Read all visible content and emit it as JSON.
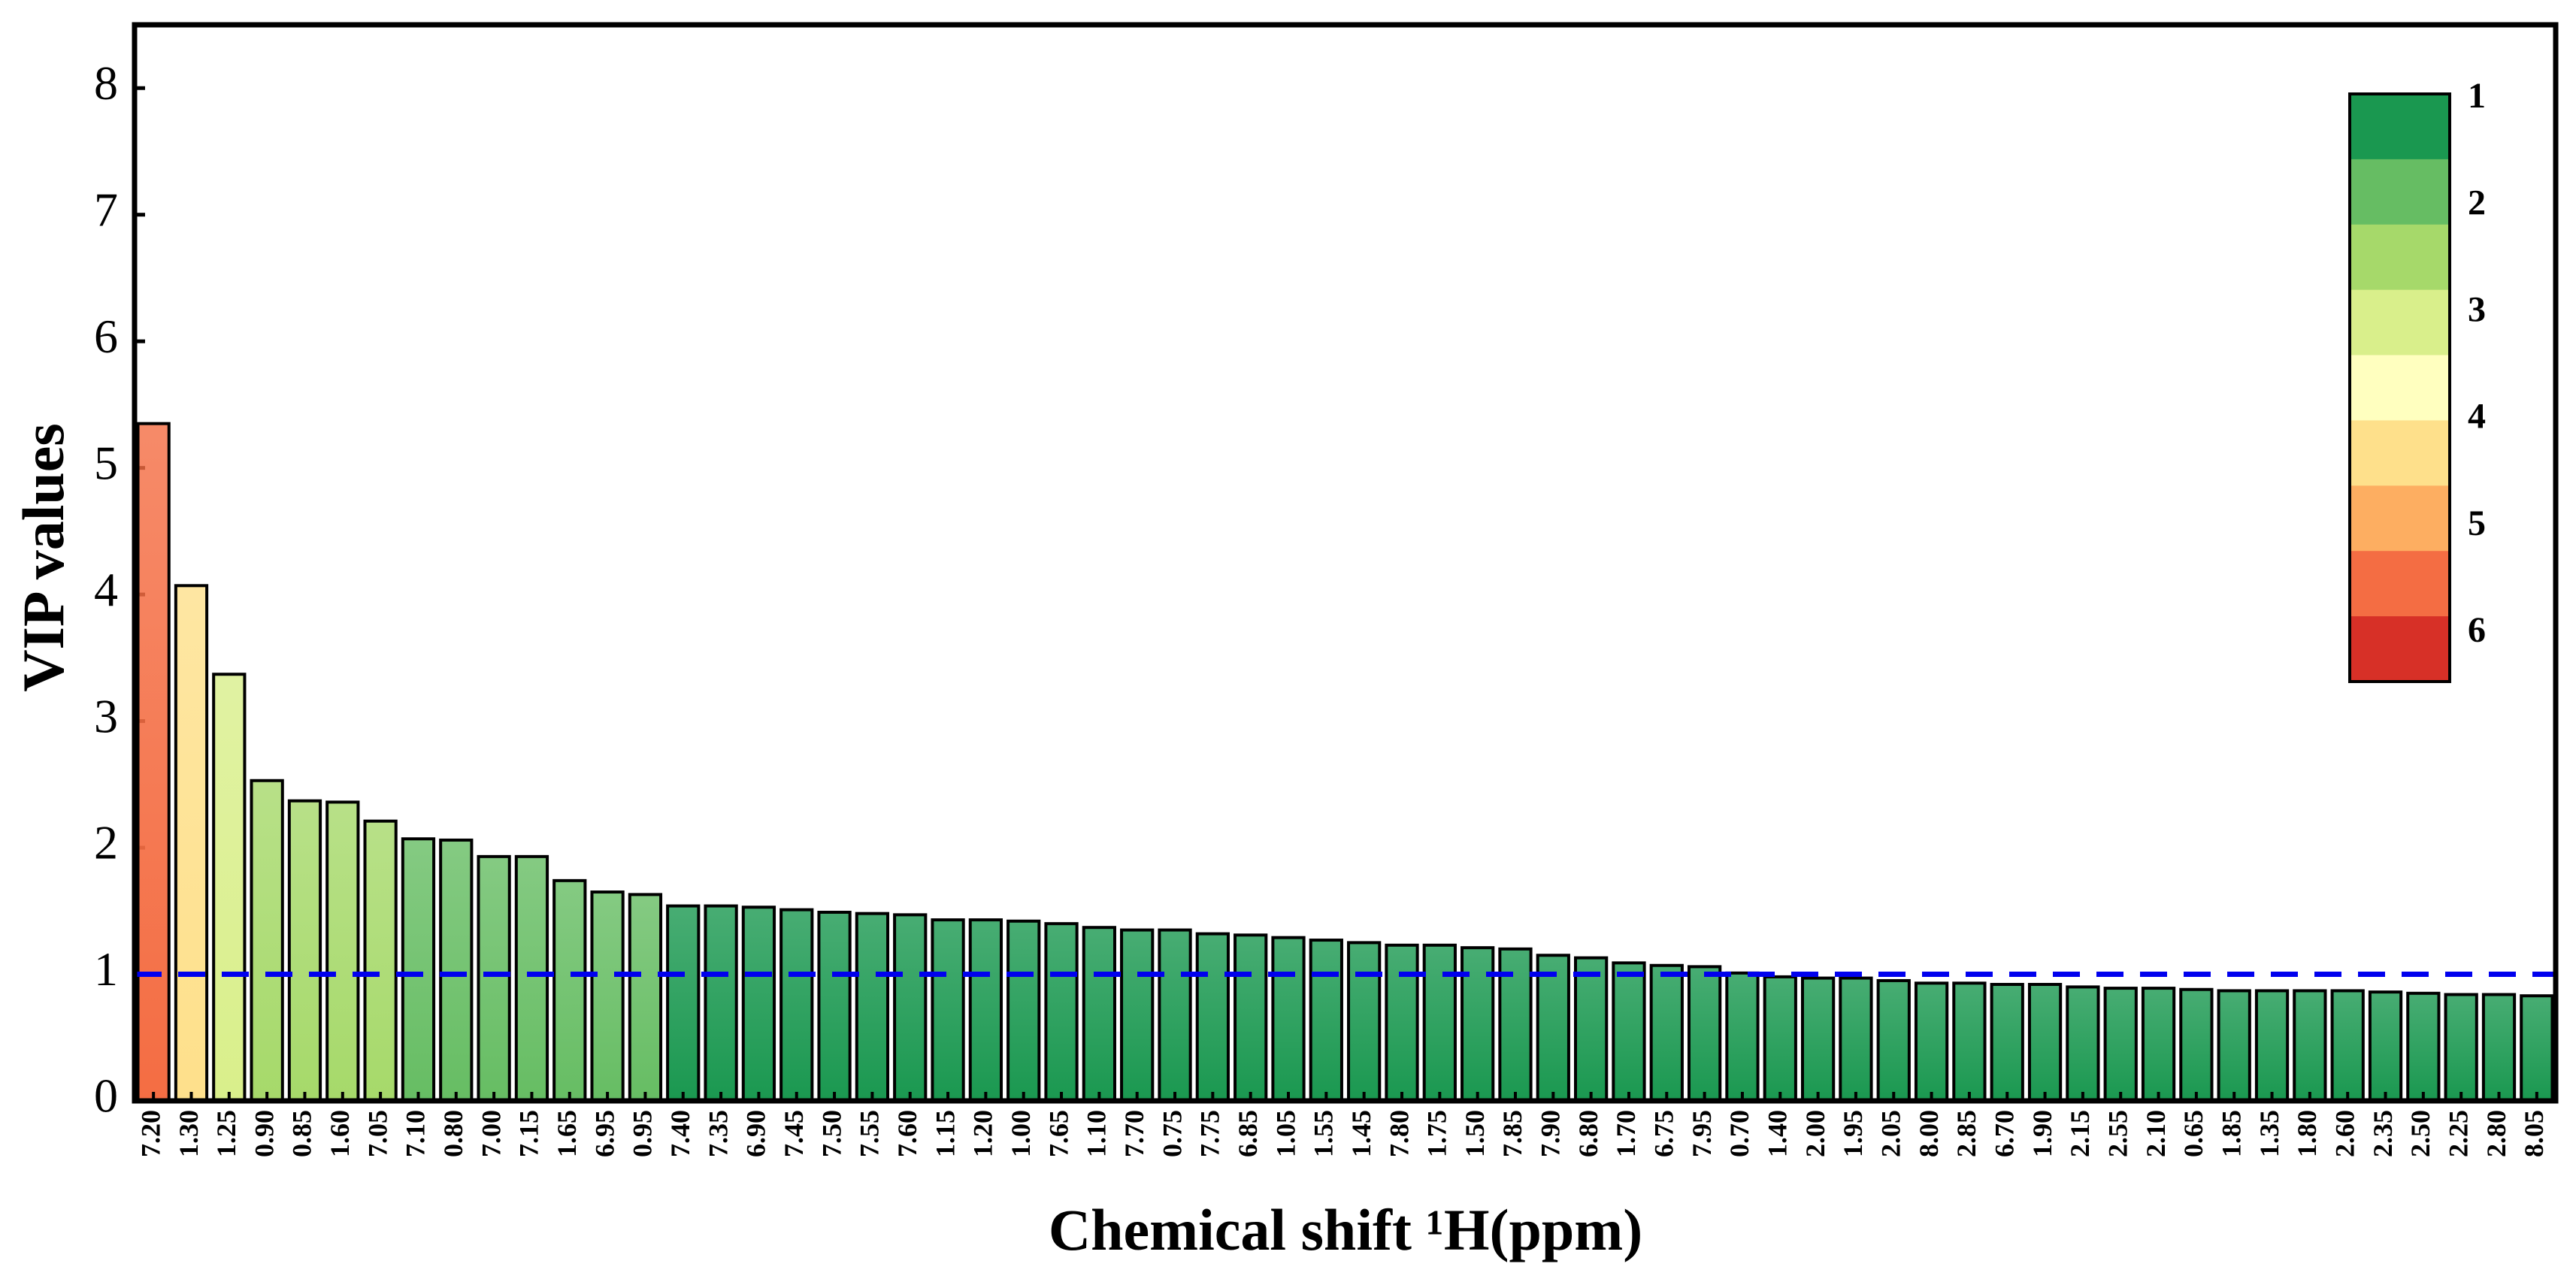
{
  "chart_data": {
    "type": "bar",
    "x_label": "Chemical shift ¹H(ppm)",
    "y_label": "VIP values",
    "categories": [
      "7.20",
      "1.30",
      "1.25",
      "0.90",
      "0.85",
      "1.60",
      "7.05",
      "7.10",
      "0.80",
      "7.00",
      "7.15",
      "1.65",
      "6.95",
      "0.95",
      "7.40",
      "7.35",
      "6.90",
      "7.45",
      "7.50",
      "7.55",
      "7.60",
      "1.15",
      "1.20",
      "1.00",
      "7.65",
      "1.10",
      "7.70",
      "0.75",
      "7.75",
      "6.85",
      "1.05",
      "1.55",
      "1.45",
      "7.80",
      "1.75",
      "1.50",
      "7.85",
      "7.90",
      "6.80",
      "1.70",
      "6.75",
      "7.95",
      "0.70",
      "1.40",
      "2.00",
      "1.95",
      "2.05",
      "8.00",
      "2.85",
      "6.70",
      "1.90",
      "2.15",
      "2.55",
      "2.10",
      "0.65",
      "1.85",
      "1.35",
      "1.80",
      "2.60",
      "2.35",
      "2.50",
      "2.25",
      "2.80",
      "8.05"
    ],
    "values": [
      5.35,
      4.07,
      3.37,
      2.53,
      2.37,
      2.36,
      2.21,
      2.07,
      2.06,
      1.93,
      1.93,
      1.74,
      1.65,
      1.63,
      1.54,
      1.54,
      1.53,
      1.51,
      1.49,
      1.48,
      1.47,
      1.43,
      1.43,
      1.42,
      1.4,
      1.37,
      1.35,
      1.35,
      1.32,
      1.31,
      1.29,
      1.27,
      1.25,
      1.23,
      1.23,
      1.21,
      1.2,
      1.15,
      1.13,
      1.09,
      1.07,
      1.06,
      1.01,
      0.98,
      0.97,
      0.97,
      0.95,
      0.93,
      0.93,
      0.92,
      0.92,
      0.9,
      0.89,
      0.89,
      0.88,
      0.87,
      0.87,
      0.87,
      0.87,
      0.86,
      0.85,
      0.84,
      0.84,
      0.83
    ],
    "ylim": [
      0,
      8.5
    ],
    "yticks": [
      0,
      1,
      2,
      3,
      4,
      5,
      6,
      7,
      8
    ],
    "hline": 1,
    "hline_color": "#0000ee",
    "colorbar": {
      "colors": [
        "#1a9850",
        "#66bd63",
        "#a6d96a",
        "#d9ef8b",
        "#ffffbf",
        "#fee08b",
        "#fdae61",
        "#f46d43",
        "#d73027"
      ],
      "lim": [
        0.95,
        6.45
      ],
      "ticks": [
        1,
        2,
        3,
        4,
        5,
        6
      ]
    }
  }
}
